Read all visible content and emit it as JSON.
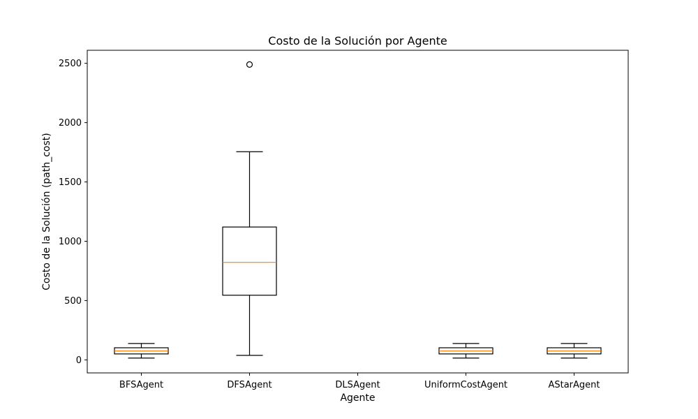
{
  "chart_data": {
    "type": "boxplot",
    "title": "Costo de la Solución por Agente",
    "xlabel": "Agente",
    "ylabel": "Costo de la Solución (path_cost)",
    "ylim": [
      -110,
      2610
    ],
    "yticks": [
      0,
      500,
      1000,
      1500,
      2000,
      2500
    ],
    "categories": [
      "BFSAgent",
      "DFSAgent",
      "DLSAgent",
      "UniformCostAgent",
      "AStarAgent"
    ],
    "boxes": [
      {
        "whisker_low": 15,
        "q1": 50,
        "median": 75,
        "q3": 102,
        "whisker_high": 138,
        "outliers": []
      },
      {
        "whisker_low": 38,
        "q1": 545,
        "median": 822,
        "q3": 1120,
        "whisker_high": 1755,
        "outliers": [
          2490
        ]
      },
      null,
      {
        "whisker_low": 15,
        "q1": 50,
        "median": 75,
        "q3": 102,
        "whisker_high": 138,
        "outliers": []
      },
      {
        "whisker_low": 15,
        "q1": 50,
        "median": 75,
        "q3": 102,
        "whisker_high": 138,
        "outliers": []
      }
    ],
    "colors": {
      "box": "#000000",
      "median": "#ff7f0e"
    }
  }
}
